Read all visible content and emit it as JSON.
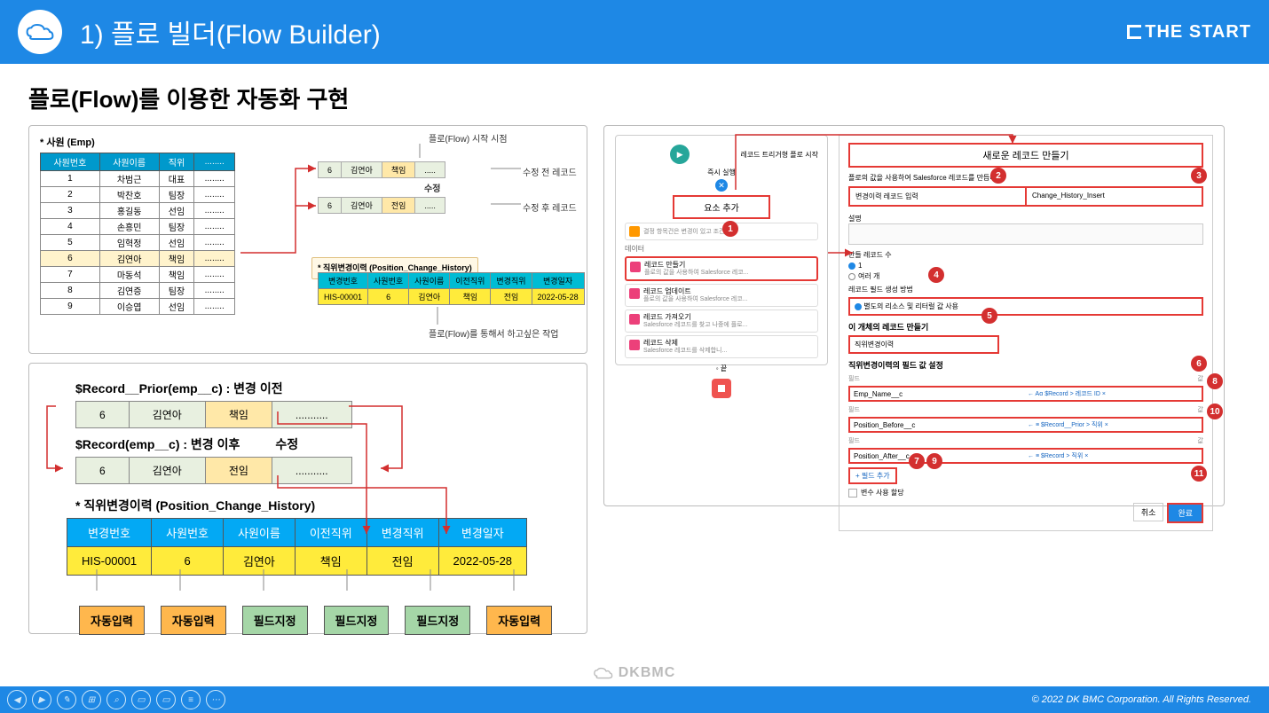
{
  "header": {
    "title": "1) 플로 빌더(Flow Builder)",
    "brand": "THE START"
  },
  "section_title": "플로(Flow)를 이용한 자동화 구현",
  "emp": {
    "caption": "* 사원 (Emp)",
    "cols": [
      "사원번호",
      "사원이름",
      "직위",
      "........"
    ],
    "rows": [
      [
        "1",
        "차범근",
        "대표",
        "........"
      ],
      [
        "2",
        "박찬호",
        "팀장",
        "........"
      ],
      [
        "3",
        "홍길동",
        "선임",
        "........"
      ],
      [
        "4",
        "손흥민",
        "팀장",
        "........"
      ],
      [
        "5",
        "임혁정",
        "선임",
        "........"
      ],
      [
        "6",
        "김연아",
        "책임",
        "........"
      ],
      [
        "7",
        "마동석",
        "책임",
        "........"
      ],
      [
        "8",
        "김연증",
        "팀장",
        "........"
      ],
      [
        "9",
        "이승엽",
        "선임",
        "........"
      ]
    ],
    "highlight_row": 5
  },
  "labels": {
    "start_point": "플로(Flow) 시작 시점",
    "before_mod": "수정 전 레코드",
    "after_mod": "수정 후 레코드",
    "modify": "수정",
    "want_action": "플로(Flow)를 통해서 하고싶은 작업",
    "hist_caption_sm": "* 직위변경이력 (Position_Change_History)"
  },
  "mini_before": [
    "6",
    "김연아",
    "책임",
    "....."
  ],
  "mini_after": [
    "6",
    "김연아",
    "전임",
    "....."
  ],
  "hist_sm": {
    "cols": [
      "변경번호",
      "사원번호",
      "사원이름",
      "이전직위",
      "변경직위",
      "변경일자"
    ],
    "rows": [
      [
        "HIS-00001",
        "6",
        "김연아",
        "책임",
        "전임",
        "2022-05-28"
      ]
    ]
  },
  "rec_prior_label": "$Record__Prior(emp__c) : 변경 이전",
  "rec_after_label": "$Record(emp__c) : 변경 이후",
  "rec_prior": [
    "6",
    "김연아",
    "책임",
    "..........."
  ],
  "rec_after": [
    "6",
    "김연아",
    "전임",
    "..........."
  ],
  "hist_title": "* 직위변경이력 (Position_Change_History)",
  "hist_lg": {
    "cols": [
      "변경번호",
      "사원번호",
      "사원이름",
      "이전직위",
      "변경직위",
      "변경일자"
    ],
    "rows": [
      [
        "HIS-00001",
        "6",
        "김연아",
        "책임",
        "전임",
        "2022-05-28"
      ]
    ]
  },
  "tags": [
    "자동입력",
    "자동입력",
    "필드지정",
    "필드지정",
    "필드지정",
    "자동입력"
  ],
  "flow": {
    "trigger": "레코드 트리거형 플로 시작",
    "run_now": "즉시 실행",
    "add_elem": "요소 추가",
    "section_data": "데이터",
    "items": [
      {
        "t": "레코드 만들기",
        "s": "플로의 값을 사용하여 Salesforce 레코...",
        "hl": true,
        "icon": "#ec407a"
      },
      {
        "t": "레코드 업데이트",
        "s": "플로의 값을 사용하여 Salesforce 레코...",
        "hl": false,
        "icon": "#ec407a"
      },
      {
        "t": "레코드 가져오기",
        "s": "Salesforce 레코드를 찾고 나중에 플로...",
        "hl": false,
        "icon": "#ec407a"
      },
      {
        "t": "레코드 삭제",
        "s": "Salesforce 레코드를 삭제합니...",
        "hl": false,
        "icon": "#ec407a"
      }
    ],
    "end": "끝"
  },
  "config": {
    "title": "새로운 레코드 만들기",
    "desc": "플로의 값을 사용하여 Salesforce 레코드를 만듭니다.",
    "label_val": "변경이력 레코드 입력",
    "api_val": "Change_History_Insert",
    "desc_label": "설명",
    "count_label": "만들 레코드 수",
    "count_one": "1",
    "count_many": "여러 개",
    "method_label": "레코드 필드 생성 방법",
    "method_radio": "별도의 리소스 및 리터럴 값 사용",
    "object_label": "이 개체의 레코드 만들기",
    "object_val": "직위변경이력",
    "fieldset_label": "직위변경이력의 필드 값 설정",
    "fld_hdr_l": "필드",
    "fld_hdr_r": "값",
    "fields": [
      {
        "l": "Emp_Name__c",
        "r": "← Aα $Record > 레코드 ID ×"
      },
      {
        "l": "Position_Before__c",
        "r": "← ≡ $Record__Prior > 직위 ×"
      },
      {
        "l": "Position_After__c",
        "r": "← ≡ $Record > 직위 ×"
      }
    ],
    "add_field": "+ 필드 추가",
    "assign_var": "변수 사용 할당",
    "cancel": "취소",
    "done": "완료"
  },
  "footer": {
    "logo": "DKBMC",
    "copyright": "© 2022 DK BMC Corporation. All Rights Reserved."
  }
}
